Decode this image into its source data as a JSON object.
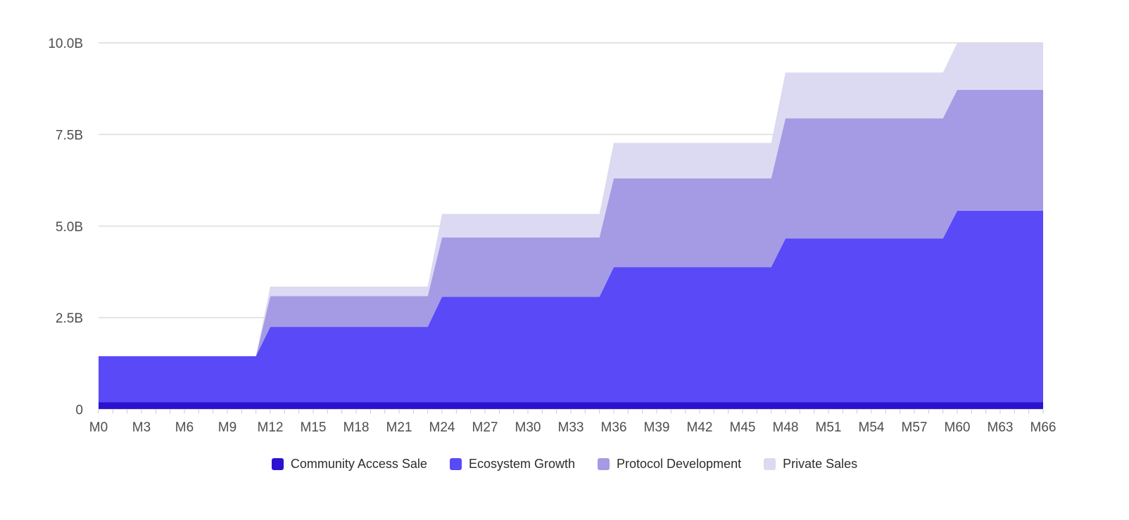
{
  "colors": {
    "background": "#FFFFFF",
    "grid": "#DCDCDC",
    "axis_line": "#D9D9D9",
    "tick": "#C9C9C9",
    "axis_text": "#4E4E4E",
    "legend_text": "#2D2D2D"
  },
  "chart_data": {
    "type": "area",
    "stacked": true,
    "grid": "horizontal",
    "legend_position": "bottom",
    "x_unit": "months",
    "x": [
      0,
      1,
      2,
      3,
      4,
      5,
      6,
      7,
      8,
      9,
      10,
      11,
      12,
      13,
      14,
      15,
      16,
      17,
      18,
      19,
      20,
      21,
      22,
      23,
      24,
      25,
      26,
      27,
      28,
      29,
      30,
      31,
      32,
      33,
      34,
      35,
      36,
      37,
      38,
      39,
      40,
      41,
      42,
      43,
      44,
      45,
      46,
      47,
      48,
      49,
      50,
      51,
      52,
      53,
      54,
      55,
      56,
      57,
      58,
      59,
      60,
      61,
      62,
      63,
      64,
      65,
      66
    ],
    "x_tick_interval": 3,
    "x_tick_labels": [
      "M0",
      "M3",
      "M6",
      "M9",
      "M12",
      "M15",
      "M18",
      "M21",
      "M24",
      "M27",
      "M30",
      "M33",
      "M36",
      "M39",
      "M42",
      "M45",
      "M48",
      "M51",
      "M54",
      "M57",
      "M60",
      "M63",
      "M66"
    ],
    "ylim": [
      0,
      10
    ],
    "y_unit": "B",
    "y_ticks": [
      {
        "value": 0,
        "label": "0"
      },
      {
        "value": 2.5,
        "label": "2.5B"
      },
      {
        "value": 5,
        "label": "5.0B"
      },
      {
        "value": 7.5,
        "label": "7.5B"
      },
      {
        "value": 10,
        "label": "10.0B"
      }
    ],
    "series": [
      {
        "name": "Community Access Sale",
        "color": "#2A12D0",
        "values": [
          0.2,
          0.2,
          0.2,
          0.2,
          0.2,
          0.2,
          0.2,
          0.2,
          0.2,
          0.2,
          0.2,
          0.2,
          0.2,
          0.2,
          0.2,
          0.2,
          0.2,
          0.2,
          0.2,
          0.2,
          0.2,
          0.2,
          0.2,
          0.2,
          0.2,
          0.2,
          0.2,
          0.2,
          0.2,
          0.2,
          0.2,
          0.2,
          0.2,
          0.2,
          0.2,
          0.2,
          0.2,
          0.2,
          0.2,
          0.2,
          0.2,
          0.2,
          0.2,
          0.2,
          0.2,
          0.2,
          0.2,
          0.2,
          0.2,
          0.2,
          0.2,
          0.2,
          0.2,
          0.2,
          0.2,
          0.2,
          0.2,
          0.2,
          0.2,
          0.2,
          0.2,
          0.2,
          0.2,
          0.2,
          0.2,
          0.2,
          0.2
        ]
      },
      {
        "name": "Ecosystem Growth",
        "color": "#5A49F7",
        "values": [
          1.25,
          1.25,
          1.25,
          1.25,
          1.25,
          1.25,
          1.25,
          1.25,
          1.25,
          1.25,
          1.25,
          1.25,
          2.05,
          2.05,
          2.05,
          2.05,
          2.05,
          2.05,
          2.05,
          2.05,
          2.05,
          2.05,
          2.05,
          2.05,
          2.87,
          2.87,
          2.87,
          2.87,
          2.87,
          2.87,
          2.87,
          2.87,
          2.87,
          2.87,
          2.87,
          2.87,
          3.68,
          3.68,
          3.68,
          3.68,
          3.68,
          3.68,
          3.68,
          3.68,
          3.68,
          3.68,
          3.68,
          3.68,
          4.46,
          4.46,
          4.46,
          4.46,
          4.46,
          4.46,
          4.46,
          4.46,
          4.46,
          4.46,
          4.46,
          4.46,
          5.22,
          5.22,
          5.22,
          5.22,
          5.22,
          5.22,
          5.22
        ]
      },
      {
        "name": "Protocol Development",
        "color": "#A49BE4",
        "values": [
          0,
          0,
          0,
          0,
          0,
          0,
          0,
          0,
          0,
          0,
          0,
          0,
          0.84,
          0.84,
          0.84,
          0.84,
          0.84,
          0.84,
          0.84,
          0.84,
          0.84,
          0.84,
          0.84,
          0.84,
          1.62,
          1.62,
          1.62,
          1.62,
          1.62,
          1.62,
          1.62,
          1.62,
          1.62,
          1.62,
          1.62,
          1.62,
          2.42,
          2.42,
          2.42,
          2.42,
          2.42,
          2.42,
          2.42,
          2.42,
          2.42,
          2.42,
          2.42,
          2.42,
          3.28,
          3.28,
          3.28,
          3.28,
          3.28,
          3.28,
          3.28,
          3.28,
          3.28,
          3.28,
          3.28,
          3.28,
          3.3,
          3.3,
          3.3,
          3.3,
          3.3,
          3.3,
          3.3
        ]
      },
      {
        "name": "Private Sales",
        "color": "#DCD9F2",
        "values": [
          0,
          0,
          0,
          0,
          0,
          0,
          0,
          0,
          0,
          0,
          0,
          0,
          0.26,
          0.26,
          0.26,
          0.26,
          0.26,
          0.26,
          0.26,
          0.26,
          0.26,
          0.26,
          0.26,
          0.26,
          0.64,
          0.64,
          0.64,
          0.64,
          0.64,
          0.64,
          0.64,
          0.64,
          0.64,
          0.64,
          0.64,
          0.64,
          0.97,
          0.97,
          0.97,
          0.97,
          0.97,
          0.97,
          0.97,
          0.97,
          0.97,
          0.97,
          0.97,
          0.97,
          1.25,
          1.25,
          1.25,
          1.25,
          1.25,
          1.25,
          1.25,
          1.25,
          1.25,
          1.25,
          1.25,
          1.25,
          1.28,
          1.28,
          1.28,
          1.28,
          1.28,
          1.28,
          1.28
        ]
      }
    ]
  }
}
